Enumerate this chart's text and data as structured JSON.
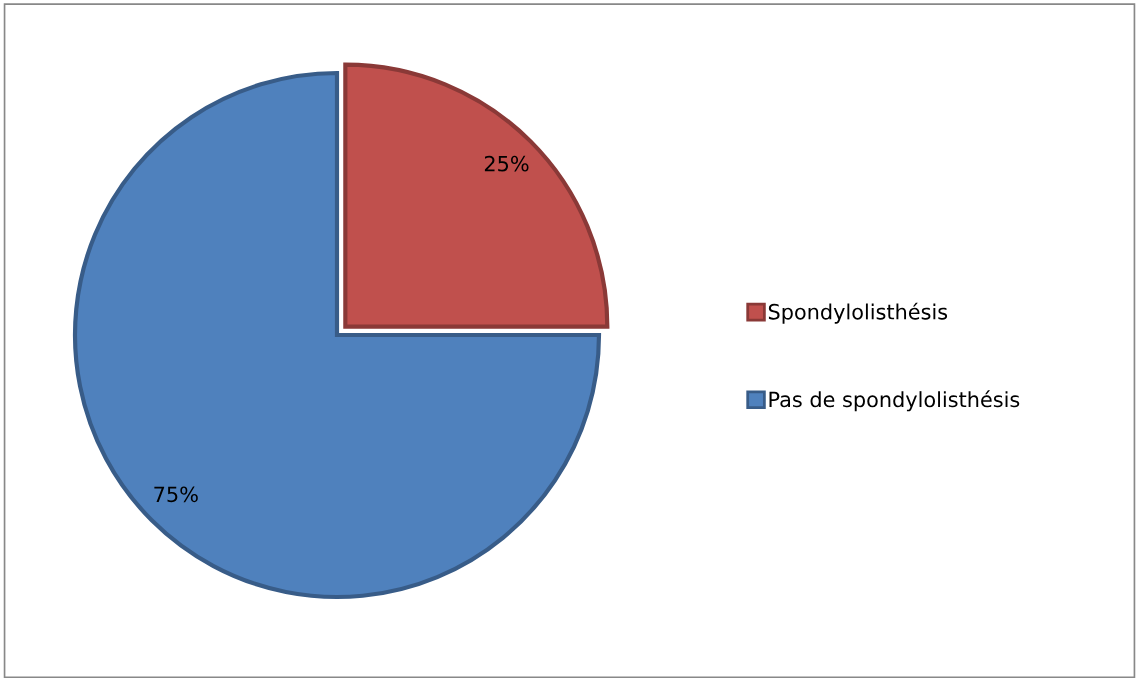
{
  "chart_data": {
    "type": "pie",
    "categories": [
      "Spondylolisthésis",
      "Pas de spondylolisthésis"
    ],
    "values": [
      25,
      75
    ],
    "colors": [
      "#c0504d",
      "#4f81bd"
    ],
    "value_labels": [
      "25%",
      "75%"
    ],
    "legend": "right"
  }
}
